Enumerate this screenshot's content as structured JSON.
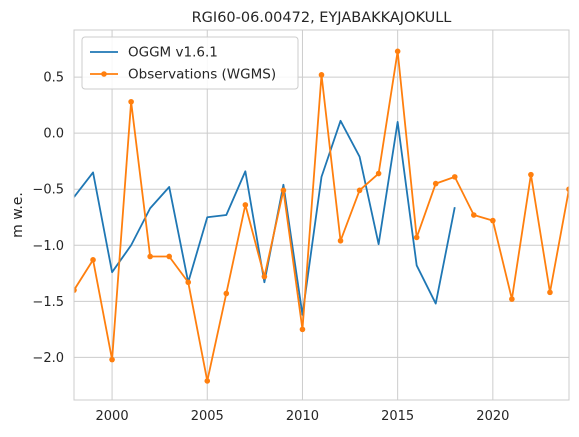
{
  "chart_data": {
    "type": "line",
    "title": "RGI60-06.00472, EYJABAKKAJOKULL",
    "xlabel": "",
    "ylabel": "m w.e.",
    "xlim": [
      1998,
      2024
    ],
    "ylim": [
      -2.38,
      0.92
    ],
    "xticks": [
      2000,
      2005,
      2010,
      2015,
      2020
    ],
    "yticks": [
      -2.0,
      -1.5,
      -1.0,
      -0.5,
      0.0,
      0.5
    ],
    "ytick_labels": [
      "−2.0",
      "−1.5",
      "−1.0",
      "−0.5",
      "0.0",
      "0.5"
    ],
    "grid": true,
    "legend_position": "top-left",
    "series": [
      {
        "name": "OGGM v1.6.1",
        "color": "#1f77b4",
        "marker": "none",
        "x": [
          1998,
          1999,
          2000,
          2001,
          2002,
          2003,
          2004,
          2005,
          2006,
          2007,
          2008,
          2009,
          2010,
          2011,
          2012,
          2013,
          2014,
          2015,
          2016,
          2017,
          2018
        ],
        "y": [
          -0.57,
          -0.35,
          -1.24,
          -1.0,
          -0.67,
          -0.48,
          -1.33,
          -0.75,
          -0.73,
          -0.34,
          -1.33,
          -0.46,
          -1.62,
          -0.39,
          0.11,
          -0.21,
          -0.99,
          0.1,
          -1.18,
          -1.52,
          -0.66
        ]
      },
      {
        "name": "Observations (WGMS)",
        "color": "#ff7f0e",
        "marker": "dot",
        "x": [
          1998,
          1999,
          2000,
          2001,
          2002,
          2003,
          2004,
          2005,
          2006,
          2007,
          2008,
          2009,
          2010,
          2011,
          2012,
          2013,
          2014,
          2015,
          2016,
          2017,
          2018,
          2019,
          2020,
          2021,
          2022,
          2023,
          2024
        ],
        "y": [
          -1.4,
          -1.13,
          -2.02,
          0.28,
          -1.1,
          -1.1,
          -1.33,
          -2.21,
          -1.43,
          -0.64,
          -1.28,
          -0.51,
          -1.75,
          0.52,
          -0.96,
          -0.51,
          -0.36,
          0.73,
          -0.93,
          -0.45,
          -0.39,
          -0.73,
          -0.78,
          -1.48,
          -0.37,
          -1.42,
          -0.5
        ]
      }
    ]
  }
}
